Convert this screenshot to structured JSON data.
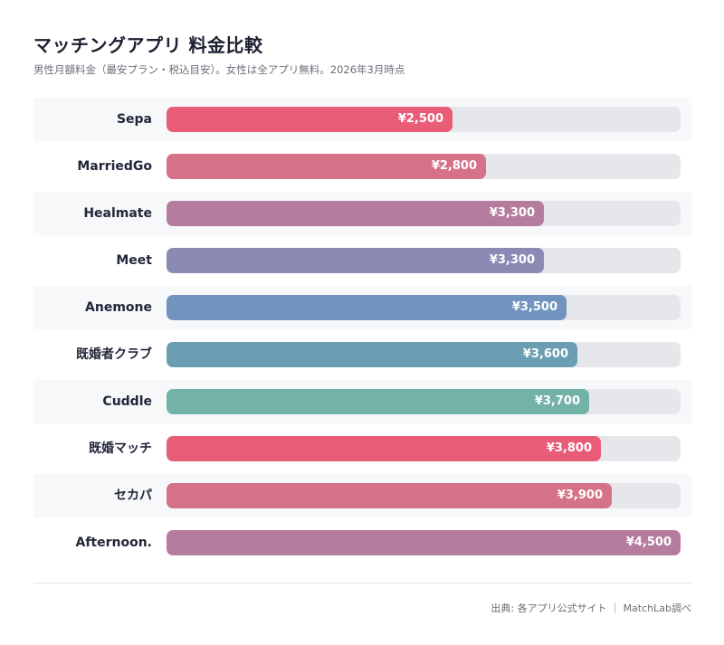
{
  "header": {
    "title": "マッチングアプリ 料金比較",
    "subtitle": "男性月額料金（最安プラン・税込目安）。女性は全アプリ無料。2026年3月時点"
  },
  "footer": {
    "source": "出典: 各アプリ公式サイト ｜ MatchLab調べ"
  },
  "chart_data": {
    "type": "bar",
    "orientation": "horizontal",
    "title": "マッチングアプリ 料金比較",
    "subtitle": "男性月額料金（最安プラン・税込目安）。女性は全アプリ無料。2026年3月時点",
    "xlim": [
      0,
      4500
    ],
    "grid": false,
    "legend": "none",
    "value_prefix": "¥",
    "categories": [
      "Sepa",
      "MarriedGo",
      "Healmate",
      "Meet",
      "Anemone",
      "既婚者クラブ",
      "Cuddle",
      "既婚マッチ",
      "セカパ",
      "Afternoon."
    ],
    "values": [
      2500,
      2800,
      3300,
      3300,
      3500,
      3600,
      3700,
      3800,
      3900,
      4500
    ],
    "value_labels": [
      "¥2,500",
      "¥2,800",
      "¥3,300",
      "¥3,300",
      "¥3,500",
      "¥3,600",
      "¥3,700",
      "¥3,800",
      "¥3,900",
      "¥4,500"
    ],
    "colors": [
      "#e95c78",
      "#d67287",
      "#b57c9e",
      "#8a8ab4",
      "#7094be",
      "#6b9eb2",
      "#73b2a7",
      "#e95c78",
      "#d67287",
      "#b57c9e"
    ],
    "track_color": "#e6e7ea"
  }
}
